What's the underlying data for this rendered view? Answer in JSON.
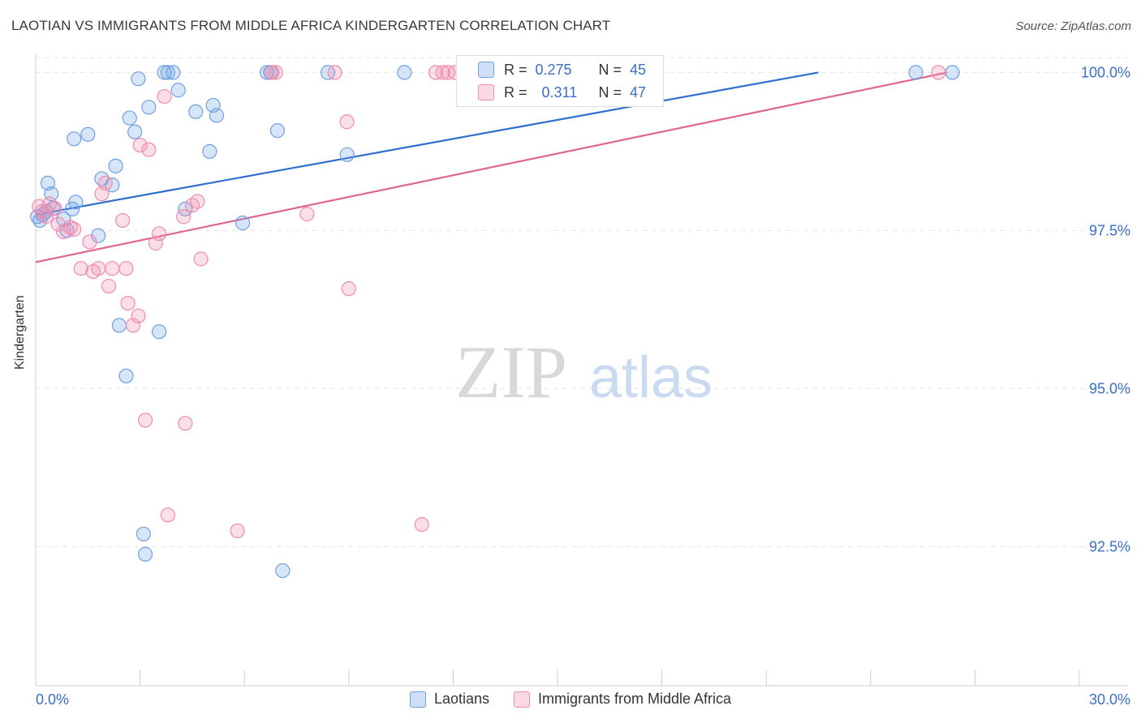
{
  "header": {
    "title": "LAOTIAN VS IMMIGRANTS FROM MIDDLE AFRICA KINDERGARTEN CORRELATION CHART",
    "source": "Source: ZipAtlas.com"
  },
  "watermark": {
    "zip": "ZIP",
    "atlas": "atlas"
  },
  "stats_legend": {
    "rows": [
      {
        "r_label": "R =",
        "r_value": "0.275",
        "n_label": "N =",
        "n_value": "45",
        "color": "#6fa0e6"
      },
      {
        "r_label": "R =",
        "r_value": "0.311",
        "n_label": "N =",
        "n_value": "47",
        "color": "#f28cac"
      }
    ]
  },
  "chart_data": {
    "type": "scatter",
    "title": "LAOTIAN VS IMMIGRANTS FROM MIDDLE AFRICA KINDERGARTEN CORRELATION CHART",
    "xlabel": "",
    "ylabel": "Kindergarten",
    "xlim": [
      0,
      30
    ],
    "ylim": [
      90.3,
      100.3
    ],
    "x_tick_labels": [
      "0.0%",
      "30.0%"
    ],
    "y_ticks": [
      92.5,
      95.0,
      97.5,
      100.0
    ],
    "y_tick_labels": [
      "92.5%",
      "95.0%",
      "97.5%",
      "100.0%"
    ],
    "grid": true,
    "legend_position": "bottom-center",
    "series": [
      {
        "name": "Laotians",
        "color": "#6fa0e6",
        "line_color": "#2f6fcf",
        "trend": {
          "x": [
            0.0,
            22.5
          ],
          "y": [
            97.75,
            100.0
          ]
        },
        "points": [
          [
            0.05,
            97.72
          ],
          [
            0.12,
            97.66
          ],
          [
            0.2,
            97.75
          ],
          [
            0.3,
            97.8
          ],
          [
            0.35,
            98.25
          ],
          [
            0.45,
            98.08
          ],
          [
            0.5,
            97.85
          ],
          [
            0.8,
            97.68
          ],
          [
            0.9,
            97.5
          ],
          [
            1.05,
            97.84
          ],
          [
            1.15,
            97.95
          ],
          [
            1.1,
            98.95
          ],
          [
            1.5,
            99.02
          ],
          [
            1.8,
            97.42
          ],
          [
            1.9,
            98.32
          ],
          [
            2.2,
            98.22
          ],
          [
            2.3,
            98.52
          ],
          [
            2.4,
            96.0
          ],
          [
            2.6,
            95.2
          ],
          [
            2.7,
            99.28
          ],
          [
            2.85,
            99.06
          ],
          [
            2.95,
            99.9
          ],
          [
            3.1,
            92.7
          ],
          [
            3.15,
            92.38
          ],
          [
            3.25,
            99.45
          ],
          [
            3.55,
            95.9
          ],
          [
            3.7,
            100.0
          ],
          [
            3.8,
            100.0
          ],
          [
            3.95,
            100.0
          ],
          [
            4.1,
            99.72
          ],
          [
            4.3,
            97.84
          ],
          [
            4.6,
            99.38
          ],
          [
            5.0,
            98.75
          ],
          [
            5.1,
            99.48
          ],
          [
            5.2,
            99.32
          ],
          [
            5.95,
            97.62
          ],
          [
            6.65,
            100.0
          ],
          [
            6.75,
            100.0
          ],
          [
            6.95,
            99.08
          ],
          [
            7.1,
            92.12
          ],
          [
            8.4,
            100.0
          ],
          [
            8.95,
            98.7
          ],
          [
            10.6,
            100.0
          ],
          [
            25.3,
            100.0
          ],
          [
            26.35,
            100.0
          ]
        ]
      },
      {
        "name": "Immigrants from Middle Africa",
        "color": "#f28cac",
        "line_color": "#e0668f",
        "trend": {
          "x": [
            0.0,
            26.2
          ],
          "y": [
            97.0,
            100.0
          ]
        },
        "points": [
          [
            0.1,
            97.88
          ],
          [
            0.18,
            97.8
          ],
          [
            0.3,
            97.72
          ],
          [
            0.4,
            97.92
          ],
          [
            0.55,
            97.85
          ],
          [
            0.65,
            97.6
          ],
          [
            0.8,
            97.48
          ],
          [
            1.0,
            97.55
          ],
          [
            1.1,
            97.52
          ],
          [
            1.3,
            96.9
          ],
          [
            1.55,
            97.32
          ],
          [
            1.65,
            96.85
          ],
          [
            1.8,
            96.9
          ],
          [
            1.9,
            98.08
          ],
          [
            2.0,
            98.25
          ],
          [
            2.1,
            96.62
          ],
          [
            2.2,
            96.9
          ],
          [
            2.5,
            97.66
          ],
          [
            2.6,
            96.9
          ],
          [
            2.65,
            96.35
          ],
          [
            2.8,
            96.0
          ],
          [
            2.95,
            96.15
          ],
          [
            3.0,
            98.85
          ],
          [
            3.15,
            94.5
          ],
          [
            3.25,
            98.78
          ],
          [
            3.45,
            97.3
          ],
          [
            3.55,
            97.45
          ],
          [
            3.7,
            99.62
          ],
          [
            3.8,
            93.0
          ],
          [
            4.25,
            97.72
          ],
          [
            4.3,
            94.45
          ],
          [
            4.5,
            97.9
          ],
          [
            4.65,
            97.96
          ],
          [
            4.75,
            97.05
          ],
          [
            5.8,
            92.75
          ],
          [
            6.8,
            100.0
          ],
          [
            6.9,
            100.0
          ],
          [
            7.8,
            97.76
          ],
          [
            8.6,
            100.0
          ],
          [
            8.95,
            99.22
          ],
          [
            9.0,
            96.58
          ],
          [
            11.1,
            92.85
          ],
          [
            11.5,
            100.0
          ],
          [
            11.7,
            100.0
          ],
          [
            11.85,
            100.0
          ],
          [
            12.05,
            100.0
          ],
          [
            25.95,
            100.0
          ]
        ]
      }
    ]
  }
}
